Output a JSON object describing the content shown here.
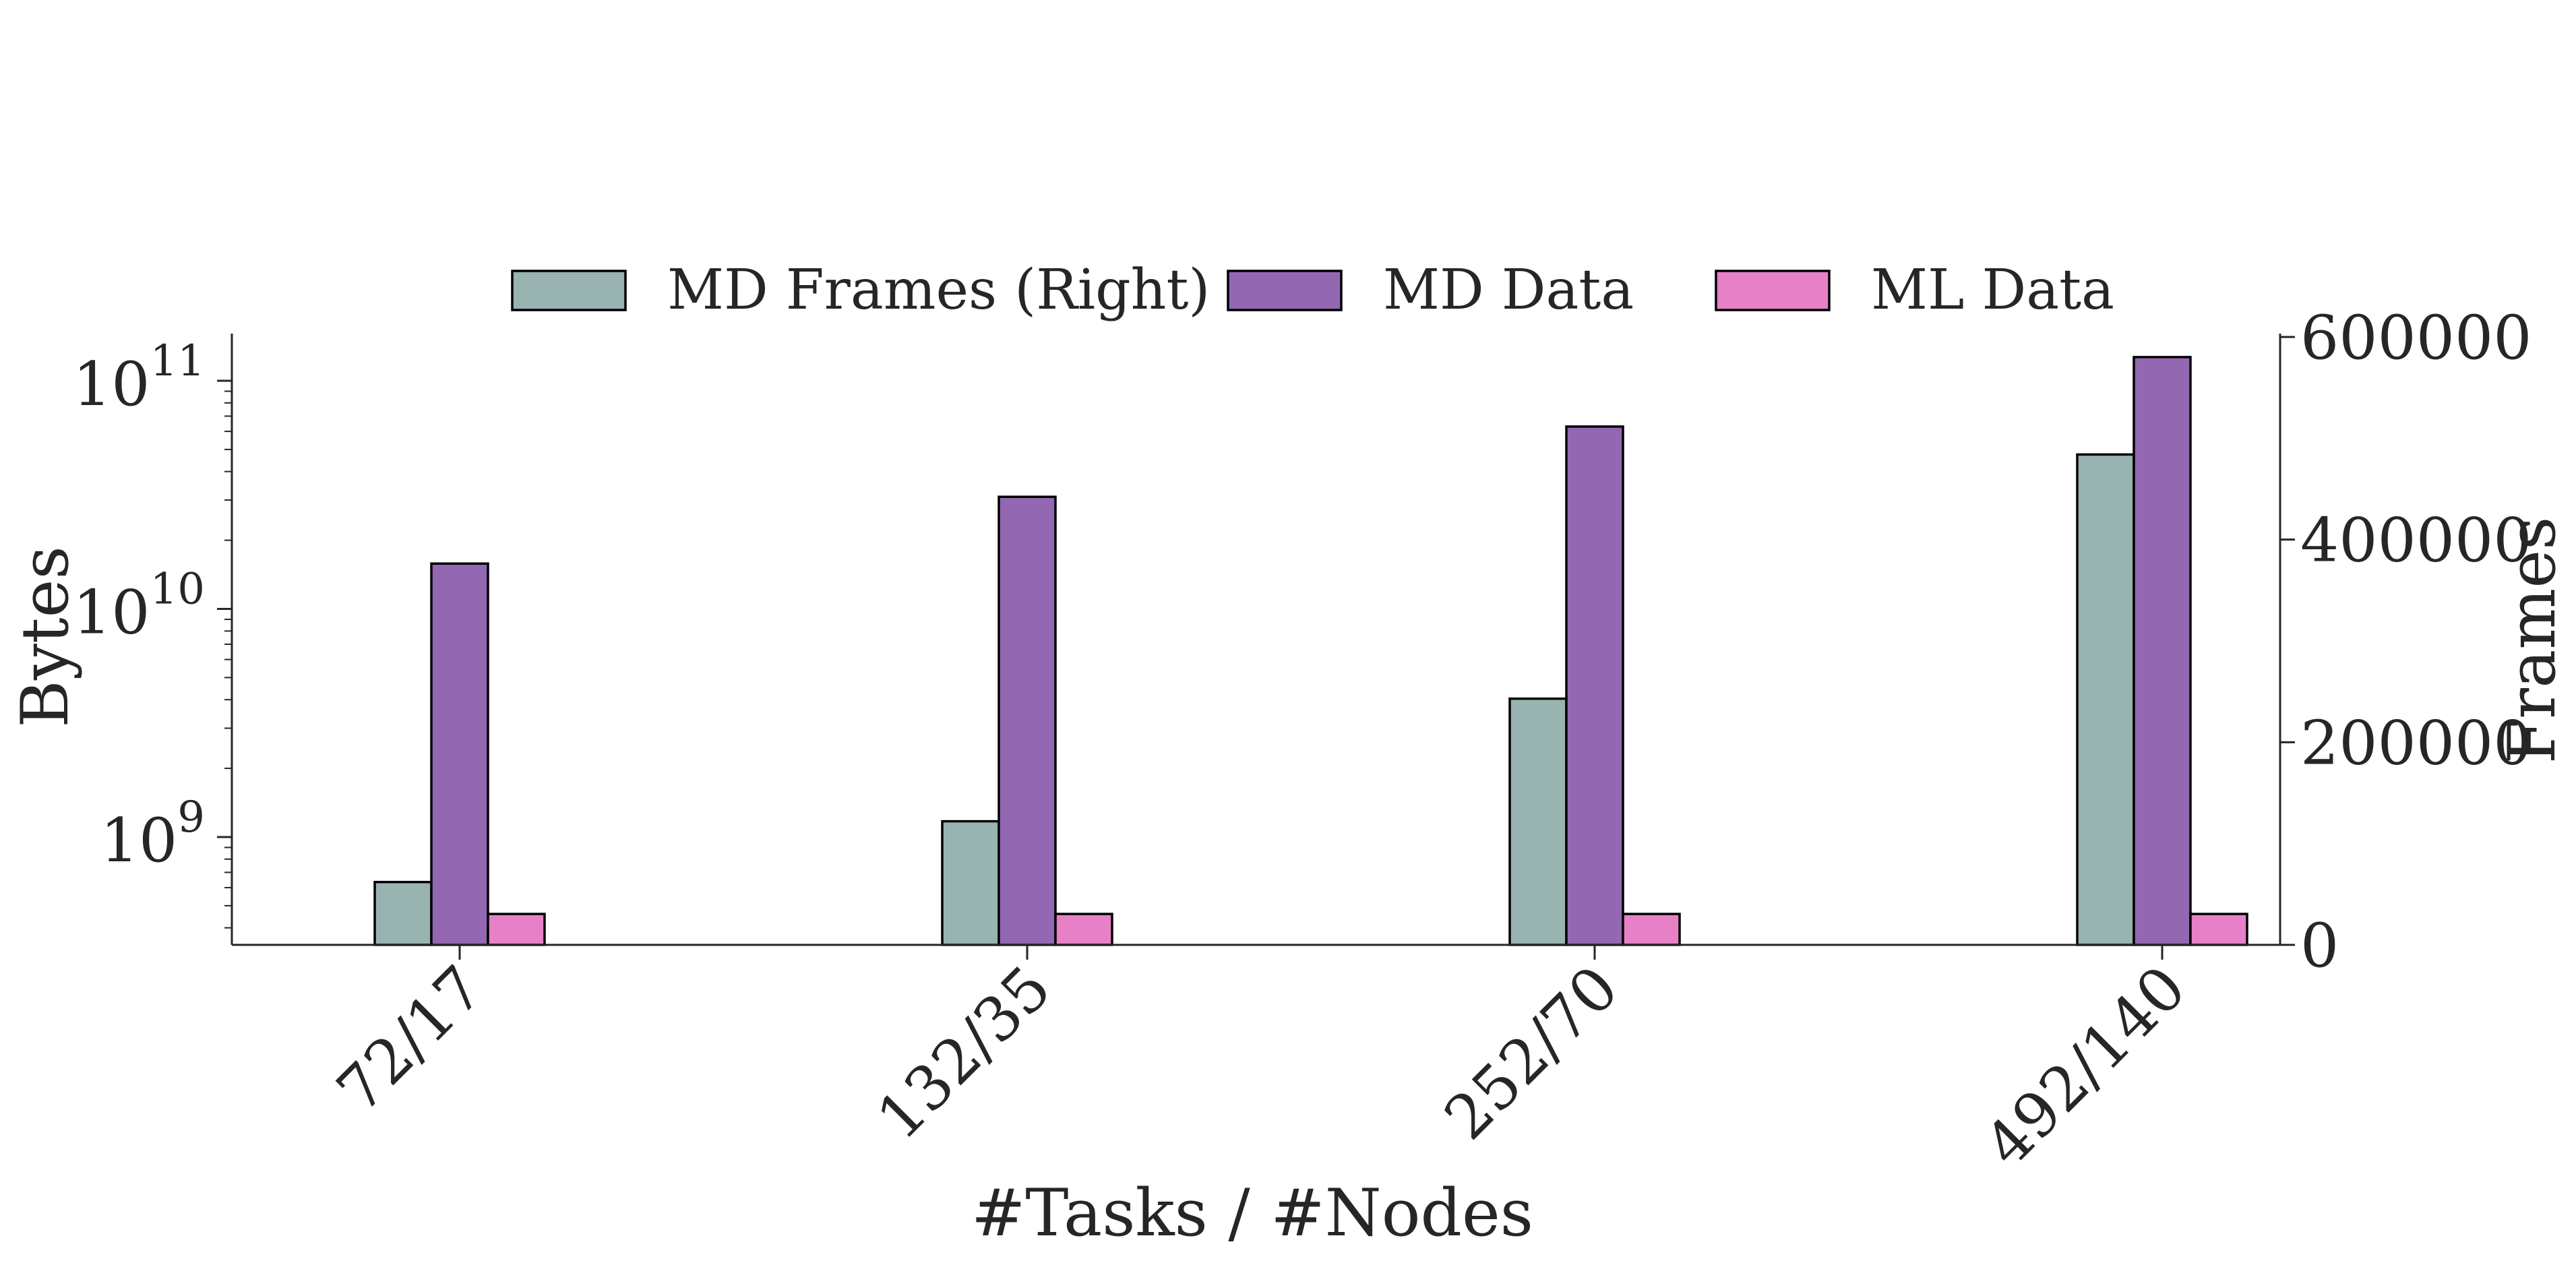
{
  "chart_data": {
    "type": "bar",
    "categories": [
      "72/17",
      "132/35",
      "252/70",
      "492/140"
    ],
    "xlabel": "#Tasks / #Nodes",
    "ylabel_left": "Bytes",
    "ylabel_right": "Frames",
    "y_left_scale": "log",
    "y_left_ticks": [
      {
        "base": "10",
        "exp": "9",
        "value": 1000000000.0
      },
      {
        "base": "10",
        "exp": "10",
        "value": 10000000000.0
      },
      {
        "base": "10",
        "exp": "11",
        "value": 100000000000.0
      }
    ],
    "y_right_ticks": [
      "0",
      "200000",
      "400000",
      "600000"
    ],
    "y_right_lim": [
      0,
      600000
    ],
    "legend_position": "top-center",
    "grid": false,
    "series": [
      {
        "name": "MD Frames (Right)",
        "axis": "right",
        "color": "#99b3b1",
        "values": [
          62000,
          122000,
          243000,
          484000
        ]
      },
      {
        "name": "MD Data",
        "axis": "left",
        "color": "#9467b2",
        "values": [
          15800000000.0,
          31000000000.0,
          63000000000.0,
          127000000000.0
        ]
      },
      {
        "name": "ML Data",
        "axis": "left",
        "color": "#e681c8",
        "values": [
          460000000.0,
          460000000.0,
          460000000.0,
          460000000.0
        ]
      }
    ]
  }
}
